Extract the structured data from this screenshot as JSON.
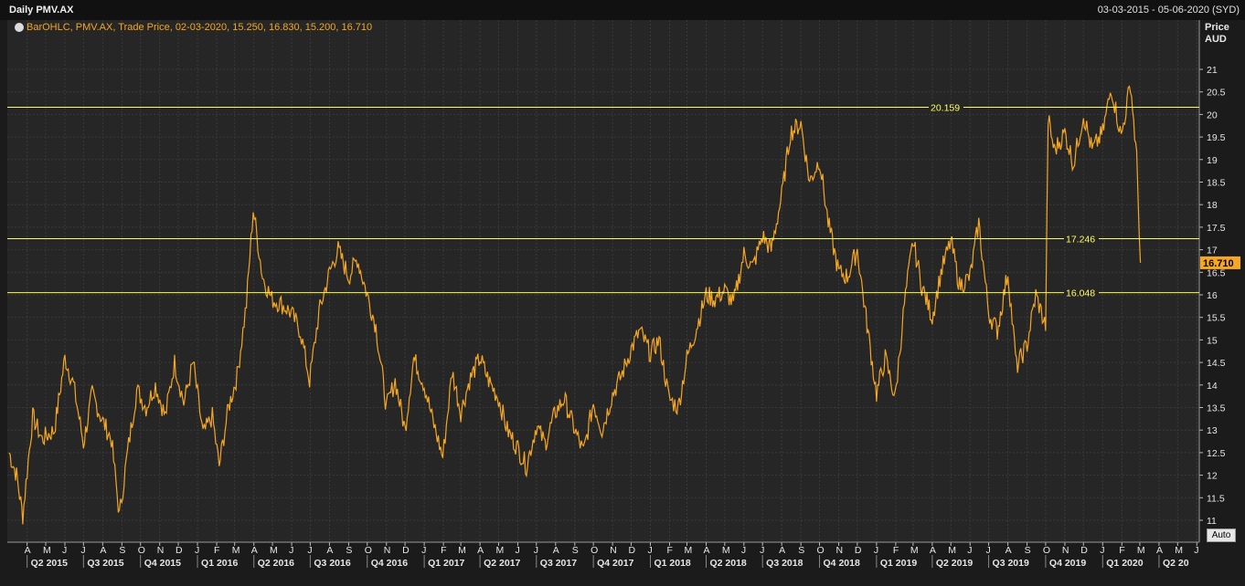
{
  "header": {
    "title": "Daily PMV.AX",
    "date_range": "03-03-2015 - 05-06-2020 (SYD)"
  },
  "legend": {
    "text": "BarOHLC, PMV.AX, Trade Price, 02-03-2020, 15.250, 16.830, 15.200, 16.710"
  },
  "y_axis": {
    "title_line1": "Price",
    "title_line2": "AUD"
  },
  "auto_button": {
    "label": "Auto"
  },
  "colors": {
    "series": "#f5a623",
    "hline": "#ffff44",
    "background": "#262626",
    "grid": "#3a3a3a"
  },
  "chart_data": {
    "type": "line",
    "title": "Daily PMV.AX",
    "ylabel": "Price AUD",
    "ylim": [
      10.75,
      21.6
    ],
    "yticks": [
      11,
      11.5,
      12,
      12.5,
      13,
      13.5,
      14,
      14.5,
      15,
      15.5,
      16,
      16.5,
      17,
      17.5,
      18,
      18.5,
      19,
      19.5,
      20,
      20.5,
      21
    ],
    "ytick_labels": [
      "11",
      "11.5",
      "12",
      "12.5",
      "13",
      "13.5",
      "14",
      "14.5",
      "15",
      "15.5",
      "16",
      "16.5",
      "17",
      "17.5",
      "18",
      "18.5",
      "19",
      "19.5",
      "20",
      "20.5",
      "21"
    ],
    "month_ticks": [
      "A",
      "M",
      "J",
      "J",
      "A",
      "S",
      "O",
      "N",
      "D",
      "J",
      "F",
      "M",
      "A",
      "M",
      "J",
      "J",
      "A",
      "S",
      "O",
      "N",
      "D",
      "J",
      "F",
      "M",
      "A",
      "M",
      "J",
      "J",
      "A",
      "S",
      "O",
      "N",
      "D",
      "J",
      "F",
      "M",
      "A",
      "M",
      "J",
      "J",
      "A",
      "S",
      "O",
      "N",
      "D",
      "J",
      "F",
      "M",
      "A",
      "M",
      "J",
      "J",
      "A",
      "S",
      "O",
      "N",
      "D",
      "J",
      "F",
      "M",
      "A",
      "M",
      "J"
    ],
    "quarter_ticks": [
      "Q2 2015",
      "Q3 2015",
      "Q4 2015",
      "Q1 2016",
      "Q2 2016",
      "Q3 2016",
      "Q4 2016",
      "Q1 2017",
      "Q2 2017",
      "Q3 2017",
      "Q4 2017",
      "Q1 2018",
      "Q2 2018",
      "Q3 2018",
      "Q4 2018",
      "Q1 2019",
      "Q2 2019",
      "Q3 2019",
      "Q4 2019",
      "Q1 2020",
      "Q2 20"
    ],
    "x_start": "2015-03-03",
    "x_end": "2020-06-05",
    "hlines": [
      {
        "value": 20.159,
        "label": "20.159"
      },
      {
        "value": 17.246,
        "label": "17.246"
      },
      {
        "value": 16.048,
        "label": "16.048"
      }
    ],
    "last_price": {
      "value": 16.71,
      "label": "16.710"
    },
    "series": [
      {
        "x": [
          "2015-03-03",
          "2015-03-15",
          "2015-03-25",
          "2015-04-10",
          "2015-04-25",
          "2015-05-15",
          "2015-06-01",
          "2015-06-15",
          "2015-07-01",
          "2015-07-15",
          "2015-08-01",
          "2015-08-15",
          "2015-08-28",
          "2015-09-10",
          "2015-09-25",
          "2015-10-10",
          "2015-10-25",
          "2015-11-10",
          "2015-11-25",
          "2015-12-10",
          "2015-12-25",
          "2016-01-10",
          "2016-01-25",
          "2016-02-05",
          "2016-02-20",
          "2016-03-05",
          "2016-03-20",
          "2016-03-31",
          "2016-04-15",
          "2016-04-30",
          "2016-05-15",
          "2016-05-31",
          "2016-06-15",
          "2016-06-30",
          "2016-07-15",
          "2016-08-01",
          "2016-08-15",
          "2016-09-01",
          "2016-09-15",
          "2016-10-01",
          "2016-10-15",
          "2016-11-01",
          "2016-11-15",
          "2016-12-01",
          "2016-12-15",
          "2017-01-01",
          "2017-01-15",
          "2017-01-31",
          "2017-02-15",
          "2017-03-01",
          "2017-03-15",
          "2017-04-01",
          "2017-04-15",
          "2017-05-01",
          "2017-05-15",
          "2017-06-01",
          "2017-06-15",
          "2017-07-01",
          "2017-07-15",
          "2017-08-01",
          "2017-08-15",
          "2017-09-01",
          "2017-09-15",
          "2017-10-01",
          "2017-10-15",
          "2017-11-01",
          "2017-11-15",
          "2017-12-01",
          "2017-12-15",
          "2018-01-01",
          "2018-01-15",
          "2018-01-31",
          "2018-02-15",
          "2018-03-01",
          "2018-03-15",
          "2018-04-01",
          "2018-04-15",
          "2018-05-01",
          "2018-05-15",
          "2018-06-01",
          "2018-06-15",
          "2018-07-01",
          "2018-07-15",
          "2018-08-01",
          "2018-08-15",
          "2018-09-01",
          "2018-09-15",
          "2018-10-01",
          "2018-10-15",
          "2018-11-01",
          "2018-11-15",
          "2018-12-01",
          "2018-12-15",
          "2019-01-01",
          "2019-01-15",
          "2019-01-31",
          "2019-02-15",
          "2019-03-01",
          "2019-03-15",
          "2019-04-01",
          "2019-04-15",
          "2019-05-01",
          "2019-05-15",
          "2019-06-01",
          "2019-06-15",
          "2019-07-01",
          "2019-07-15",
          "2019-08-01",
          "2019-08-15",
          "2019-09-01",
          "2019-09-15",
          "2019-10-01",
          "2019-10-05",
          "2019-10-15",
          "2019-11-01",
          "2019-11-15",
          "2019-12-01",
          "2019-12-15",
          "2020-01-01",
          "2020-01-15",
          "2020-01-31",
          "2020-02-15",
          "2020-02-25",
          "2020-03-02"
        ],
        "y": [
          12.5,
          12.0,
          11.1,
          13.3,
          12.8,
          13.0,
          14.6,
          14.0,
          12.7,
          13.8,
          13.2,
          12.8,
          11.1,
          12.5,
          13.9,
          13.5,
          14.0,
          13.3,
          14.5,
          13.6,
          14.5,
          12.9,
          13.3,
          12.2,
          13.5,
          14.2,
          15.8,
          17.9,
          16.4,
          15.9,
          15.8,
          15.6,
          15.2,
          14.1,
          15.6,
          16.5,
          17.0,
          16.4,
          16.8,
          16.0,
          15.3,
          13.5,
          14.1,
          13.0,
          14.6,
          14.0,
          13.2,
          12.4,
          14.3,
          13.4,
          14.1,
          14.6,
          14.1,
          13.7,
          13.0,
          12.6,
          12.2,
          13.1,
          12.7,
          13.4,
          13.7,
          13.0,
          12.5,
          13.6,
          13.0,
          13.8,
          14.2,
          14.8,
          15.2,
          14.7,
          15.0,
          13.7,
          13.5,
          14.6,
          15.2,
          16.0,
          15.9,
          16.1,
          15.8,
          16.9,
          16.6,
          17.3,
          17.0,
          18.2,
          19.6,
          19.8,
          18.5,
          19.0,
          17.6,
          16.5,
          16.4,
          17.0,
          15.5,
          13.8,
          14.6,
          13.7,
          15.8,
          17.2,
          16.2,
          15.5,
          16.5,
          17.2,
          16.2,
          16.4,
          17.6,
          15.6,
          15.2,
          16.5,
          14.4,
          14.9,
          16.0,
          15.3,
          19.9,
          19.2,
          19.6,
          18.9,
          20.0,
          19.2,
          19.6,
          20.6,
          19.5,
          20.7,
          19.0,
          16.71
        ]
      }
    ]
  }
}
